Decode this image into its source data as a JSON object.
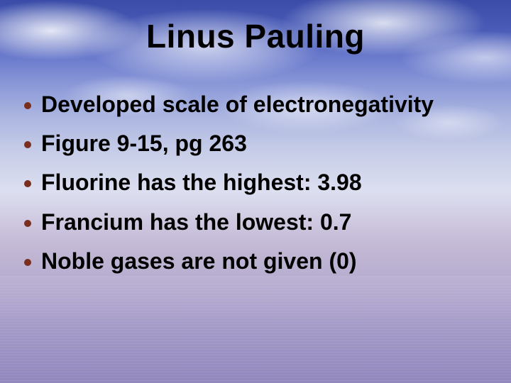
{
  "slide": {
    "title": "Linus Pauling",
    "title_fontsize": 46,
    "title_color": "#000000",
    "bullet_fontsize": 32,
    "bullet_color": "#000000",
    "bullet_dot_color": "#7a2e1e",
    "bullets": [
      "Developed scale of electronegativity",
      "Figure 9-15, pg 263",
      "Fluorine has the highest:  3.98",
      "Francium has the lowest:  0.7",
      "Noble gases are not given (0)"
    ],
    "background": {
      "type": "sky-over-water",
      "sky_top_color": "#3a4ca8",
      "sky_mid_color": "#dcdff0",
      "water_color": "#9e94c0",
      "cloud_color": "#ffffff"
    },
    "font_family": "Comic Sans MS"
  }
}
